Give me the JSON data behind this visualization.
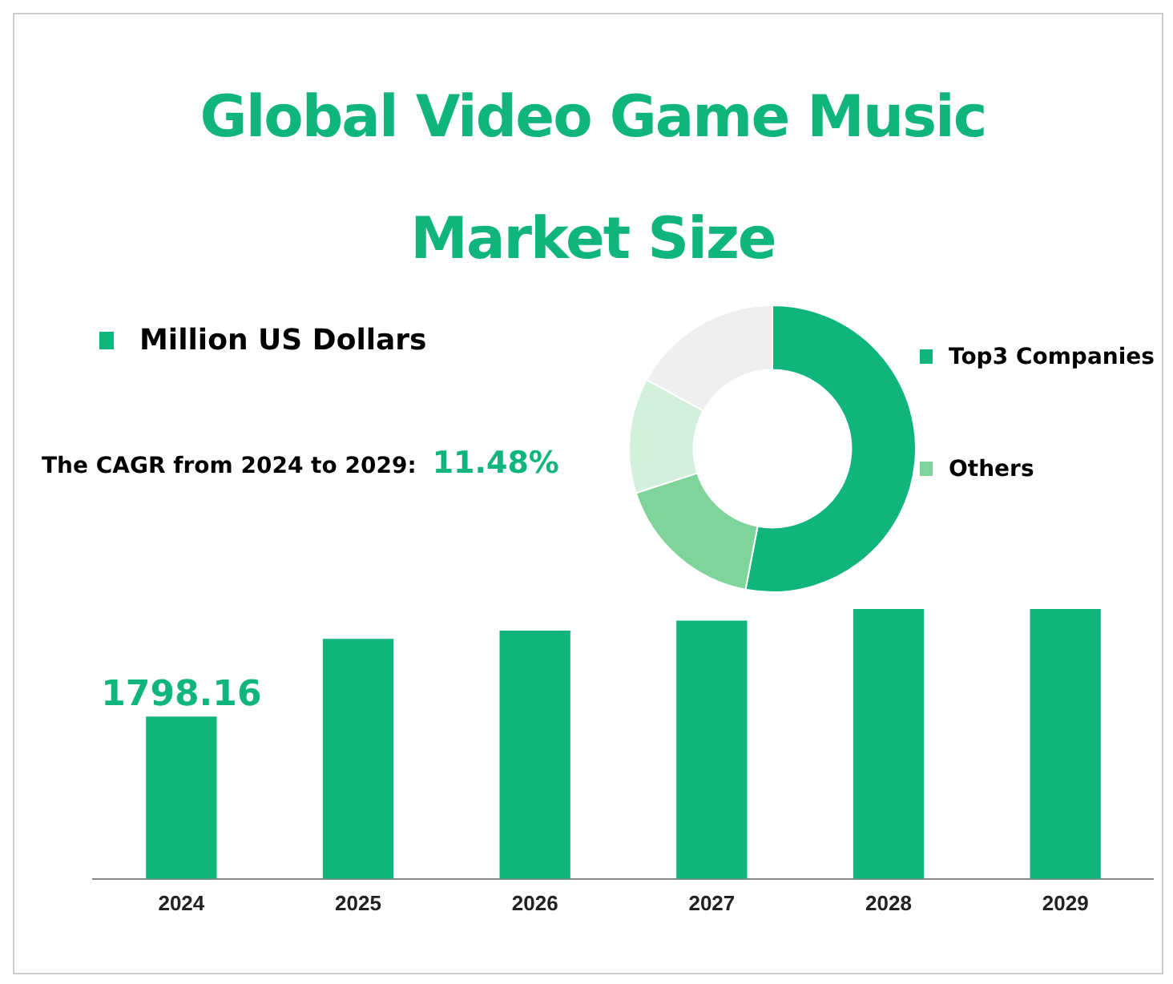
{
  "chart_data": [
    {
      "type": "bar",
      "title": "Global Video Game Music Market Size",
      "categories": [
        "2024",
        "2025",
        "2026",
        "2027",
        "2028",
        "2029"
      ],
      "series": [
        {
          "name": "Million US Dollars",
          "color": "#10b57c",
          "values": [
            1798.16,
            2661,
            2752,
            2862,
            2991,
            2991
          ],
          "value_labels": [
            "1798.16",
            null,
            null,
            null,
            null,
            null
          ]
        }
      ],
      "annotations": [
        "The CAGR from 2024 to 2029:",
        "11.48%"
      ],
      "legend": "top left",
      "grid": false
    },
    {
      "type": "donut",
      "categories": [
        "Top3 Companies",
        "Others",
        null,
        null
      ],
      "values": [
        53,
        17,
        13,
        17
      ],
      "colors": [
        "#10b57c",
        "#7fd49b",
        "#d2f0dc",
        "#efefef"
      ],
      "legend": "right"
    }
  ]
}
